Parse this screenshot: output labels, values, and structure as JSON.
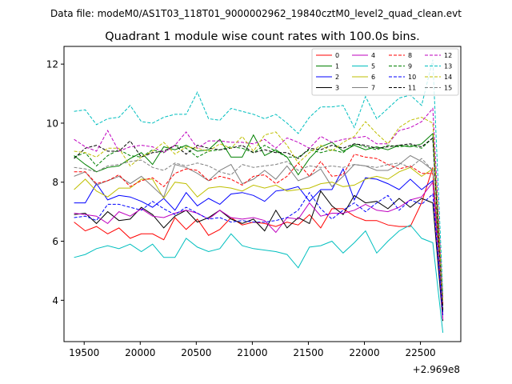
{
  "suptitle": "Data file: modeM0/AS1T03_118T01_9000002962_19840cztM0_level2_quad_clean.evt",
  "chart_data": {
    "type": "line",
    "title": "Quadrant 1 module wise count rates with 100.0s bins.",
    "xlabel": "",
    "ylabel": "",
    "x_offset_label": "+2.969e8",
    "xlim": [
      19320,
      22860
    ],
    "ylim": [
      2.6,
      12.6
    ],
    "xticks": [
      19500,
      20000,
      20500,
      21000,
      21500,
      22000,
      22500
    ],
    "yticks": [
      4,
      6,
      8,
      10,
      12
    ],
    "legend_position": "top-right",
    "x": [
      19410,
      19510,
      19610,
      19710,
      19810,
      19910,
      20010,
      20110,
      20210,
      20310,
      20410,
      20510,
      20610,
      20710,
      20810,
      20910,
      21010,
      21110,
      21210,
      21310,
      21410,
      21510,
      21610,
      21710,
      21810,
      21910,
      22010,
      22110,
      22210,
      22310,
      22410,
      22510,
      22610,
      22700
    ],
    "series": [
      {
        "name": "0",
        "color": "#ff0000",
        "dash": "solid",
        "values": [
          6.65,
          6.35,
          6.5,
          6.25,
          6.45,
          6.1,
          6.25,
          6.25,
          6.05,
          6.8,
          6.4,
          6.75,
          6.2,
          6.4,
          6.8,
          6.55,
          6.65,
          6.6,
          6.5,
          6.65,
          6.55,
          6.9,
          6.45,
          7.1,
          7.1,
          6.85,
          6.7,
          6.7,
          6.55,
          6.5,
          6.5,
          7.3,
          8.5,
          3.9
        ]
      },
      {
        "name": "1",
        "color": "#008000",
        "dash": "solid",
        "values": [
          8.9,
          8.6,
          8.35,
          8.5,
          8.55,
          8.8,
          9.0,
          8.6,
          9.2,
          9.1,
          9.25,
          9.05,
          9.1,
          9.45,
          8.85,
          8.85,
          9.6,
          8.9,
          9.1,
          8.85,
          8.25,
          8.8,
          9.2,
          9.35,
          9.05,
          9.25,
          9.1,
          9.2,
          9.1,
          9.25,
          9.2,
          9.3,
          9.65,
          3.6
        ]
      },
      {
        "name": "2",
        "color": "#0000ff",
        "dash": "solid",
        "values": [
          7.3,
          7.3,
          7.95,
          7.4,
          7.55,
          7.5,
          7.35,
          7.15,
          7.45,
          7.05,
          7.65,
          7.2,
          7.45,
          7.25,
          7.6,
          7.65,
          7.55,
          7.35,
          7.7,
          7.75,
          7.85,
          7.35,
          7.75,
          7.75,
          8.45,
          7.4,
          8.15,
          8.1,
          7.95,
          7.75,
          8.1,
          7.75,
          8.05,
          3.5
        ]
      },
      {
        "name": "3",
        "color": "#000000",
        "dash": "solid",
        "values": [
          6.9,
          6.95,
          6.6,
          7.0,
          6.7,
          6.75,
          7.15,
          6.9,
          6.45,
          6.85,
          7.05,
          6.65,
          6.8,
          7.05,
          6.75,
          6.6,
          6.75,
          6.35,
          7.05,
          6.45,
          6.8,
          6.6,
          7.7,
          7.2,
          6.9,
          7.55,
          7.3,
          7.35,
          7.1,
          7.45,
          7.15,
          7.45,
          7.3,
          3.3
        ]
      },
      {
        "name": "4",
        "color": "#bf00bf",
        "dash": "solid",
        "values": [
          6.95,
          6.9,
          6.85,
          6.6,
          7.0,
          6.85,
          7.1,
          6.85,
          6.8,
          6.95,
          7.05,
          6.95,
          6.75,
          7.05,
          6.8,
          6.75,
          6.8,
          6.7,
          6.3,
          6.8,
          6.75,
          7.3,
          6.85,
          6.95,
          6.95,
          7.05,
          7.25,
          7.05,
          7.0,
          7.15,
          7.4,
          7.5,
          8.0,
          3.35
        ]
      },
      {
        "name": "5",
        "color": "#00bfbf",
        "dash": "solid",
        "values": [
          5.45,
          5.55,
          5.75,
          5.85,
          5.75,
          5.9,
          5.65,
          5.9,
          5.45,
          5.45,
          6.1,
          5.8,
          5.65,
          5.75,
          6.25,
          5.85,
          5.75,
          5.7,
          5.65,
          5.55,
          5.1,
          5.8,
          5.85,
          6.0,
          5.6,
          5.95,
          6.35,
          5.6,
          6.0,
          6.35,
          6.55,
          6.1,
          5.95,
          2.9
        ]
      },
      {
        "name": "6",
        "color": "#bfbf00",
        "dash": "solid",
        "values": [
          7.75,
          8.1,
          7.7,
          7.5,
          7.8,
          7.8,
          8.1,
          8.1,
          7.45,
          8.0,
          7.95,
          7.5,
          7.8,
          7.85,
          7.8,
          7.7,
          7.9,
          7.8,
          7.9,
          7.7,
          7.75,
          7.8,
          7.95,
          8.0,
          7.85,
          7.9,
          8.1,
          8.2,
          8.1,
          8.35,
          8.5,
          8.2,
          8.45,
          3.8
        ]
      },
      {
        "name": "7",
        "color": "#808080",
        "dash": "solid",
        "values": [
          8.2,
          8.35,
          7.9,
          8.05,
          8.2,
          7.95,
          8.2,
          7.85,
          7.5,
          8.6,
          8.5,
          8.3,
          8.05,
          8.4,
          8.6,
          7.95,
          8.1,
          8.4,
          8.1,
          8.55,
          8.05,
          8.2,
          8.45,
          7.85,
          8.2,
          8.6,
          8.55,
          8.4,
          8.4,
          8.6,
          8.9,
          8.7,
          8.4,
          3.7
        ]
      },
      {
        "name": "8",
        "color": "#ff0000",
        "dash": "dashed",
        "values": [
          8.35,
          8.35,
          7.95,
          8.05,
          8.25,
          7.85,
          8.05,
          8.15,
          7.85,
          8.3,
          8.45,
          8.4,
          8.05,
          8.2,
          8.1,
          7.9,
          8.2,
          8.25,
          7.95,
          8.2,
          8.65,
          8.2,
          8.7,
          8.2,
          8.25,
          8.95,
          8.85,
          8.8,
          8.6,
          8.45,
          8.55,
          8.3,
          8.3,
          3.85
        ]
      },
      {
        "name": "9",
        "color": "#008000",
        "dash": "dashed",
        "values": [
          8.85,
          9.0,
          8.55,
          8.9,
          9.1,
          8.9,
          8.85,
          9.1,
          9.0,
          9.25,
          9.15,
          8.85,
          9.05,
          9.1,
          9.2,
          9.15,
          9.0,
          9.25,
          9.05,
          8.85,
          8.85,
          9.1,
          9.0,
          9.1,
          9.0,
          9.3,
          9.2,
          9.1,
          9.25,
          9.2,
          9.25,
          9.15,
          9.5,
          3.7
        ]
      },
      {
        "name": "10",
        "color": "#0000ff",
        "dash": "dashed",
        "values": [
          6.8,
          6.85,
          6.7,
          7.25,
          7.25,
          7.15,
          7.05,
          7.35,
          7.1,
          6.9,
          7.15,
          6.95,
          6.75,
          6.8,
          6.65,
          6.7,
          6.65,
          6.65,
          6.7,
          6.8,
          7.05,
          7.65,
          7.1,
          6.75,
          7.05,
          7.3,
          7.0,
          7.3,
          7.55,
          7.05,
          7.4,
          7.25,
          7.6,
          3.5
        ]
      },
      {
        "name": "11",
        "color": "#000000",
        "dash": "dashed",
        "values": [
          8.8,
          9.15,
          9.25,
          9.05,
          9.05,
          9.4,
          8.85,
          9.0,
          9.05,
          9.25,
          8.95,
          9.25,
          9.15,
          9.1,
          9.15,
          9.25,
          9.0,
          9.1,
          9.0,
          9.0,
          8.8,
          9.15,
          9.1,
          9.25,
          9.15,
          9.3,
          9.25,
          9.15,
          9.2,
          9.25,
          9.3,
          9.2,
          9.5,
          3.65
        ]
      },
      {
        "name": "12",
        "color": "#bf00bf",
        "dash": "dashed",
        "values": [
          9.45,
          9.2,
          9.05,
          9.75,
          9.05,
          9.2,
          9.25,
          9.2,
          9.0,
          9.25,
          9.7,
          9.15,
          9.4,
          9.4,
          9.35,
          9.35,
          9.3,
          9.45,
          9.15,
          9.5,
          9.35,
          9.15,
          9.55,
          9.35,
          9.45,
          9.5,
          9.55,
          9.3,
          9.3,
          9.75,
          9.85,
          10.05,
          10.5,
          4.1
        ]
      },
      {
        "name": "13",
        "color": "#00bfbf",
        "dash": "dashed",
        "values": [
          10.4,
          10.45,
          9.95,
          10.15,
          10.2,
          10.6,
          10.05,
          10.0,
          10.2,
          10.3,
          10.3,
          11.05,
          10.15,
          10.1,
          10.5,
          10.4,
          10.3,
          10.15,
          10.3,
          10.0,
          9.65,
          10.2,
          10.55,
          10.55,
          10.6,
          9.85,
          10.9,
          10.15,
          10.5,
          10.85,
          10.95,
          10.6,
          12.15,
          4.2
        ]
      },
      {
        "name": "14",
        "color": "#bfbf00",
        "dash": "dashed",
        "values": [
          9.05,
          9.0,
          8.85,
          9.15,
          9.15,
          8.55,
          8.85,
          9.05,
          9.35,
          8.95,
          9.2,
          9.15,
          9.05,
          9.3,
          9.15,
          9.55,
          9.05,
          9.6,
          9.7,
          9.25,
          8.65,
          9.0,
          9.25,
          9.05,
          9.35,
          9.55,
          10.05,
          9.65,
          9.3,
          9.85,
          10.1,
          10.2,
          10.0,
          4.0
        ]
      },
      {
        "name": "15",
        "color": "#808080",
        "dash": "dashed",
        "values": [
          8.5,
          8.45,
          8.35,
          8.55,
          8.6,
          8.7,
          8.75,
          8.5,
          8.4,
          8.65,
          8.55,
          8.65,
          8.55,
          8.35,
          8.25,
          8.6,
          8.5,
          8.55,
          8.6,
          8.7,
          8.4,
          8.55,
          8.5,
          8.55,
          8.5,
          8.6,
          8.55,
          8.5,
          8.6,
          8.65,
          8.5,
          8.8,
          8.4,
          3.95
        ]
      }
    ]
  }
}
